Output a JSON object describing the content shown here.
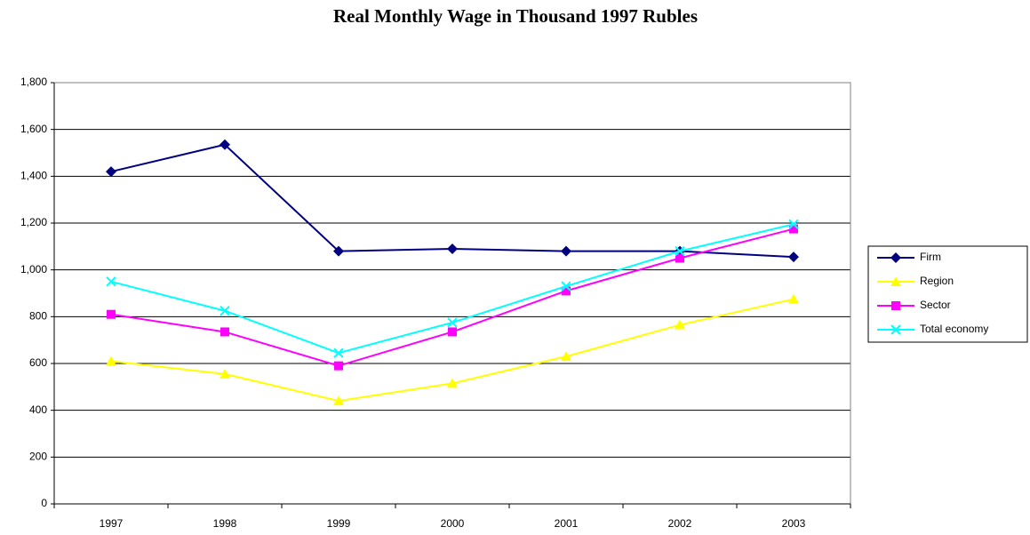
{
  "chart_data": {
    "type": "line",
    "title": "Real Monthly Wage in Thousand 1997 Rubles",
    "categories": [
      "1997",
      "1998",
      "1999",
      "2000",
      "2001",
      "2002",
      "2003"
    ],
    "series": [
      {
        "name": "Firm",
        "color": "#000080",
        "marker": "diamond",
        "values": [
          1420,
          1535,
          1080,
          1090,
          1080,
          1080,
          1055
        ]
      },
      {
        "name": "Region",
        "color": "#ffff00",
        "marker": "triangle",
        "values": [
          610,
          555,
          440,
          515,
          630,
          765,
          875
        ]
      },
      {
        "name": "Sector",
        "color": "#ff00ff",
        "marker": "square",
        "values": [
          810,
          735,
          590,
          735,
          910,
          1050,
          1175
        ]
      },
      {
        "name": "Total economy",
        "color": "#00ffff",
        "marker": "x",
        "values": [
          950,
          825,
          645,
          775,
          930,
          1080,
          1195
        ]
      }
    ],
    "ylim": [
      0,
      1800
    ],
    "yticks": [
      0,
      200,
      400,
      600,
      800,
      {
        "value": 1000,
        "label": "1,000"
      },
      {
        "value": 1200,
        "label": "1,200"
      },
      {
        "value": 1400,
        "label": "1,400"
      },
      {
        "value": 1600,
        "label": "1,600"
      },
      {
        "value": 1800,
        "label": "1,800"
      }
    ],
    "grid": true,
    "legend": "right"
  }
}
